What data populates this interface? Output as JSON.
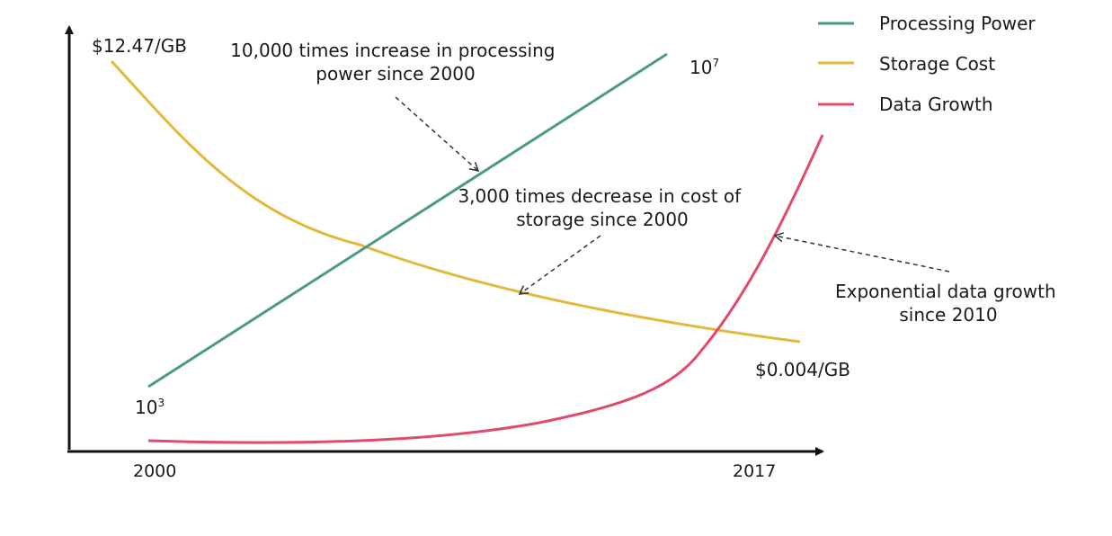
{
  "chart_data": {
    "type": "line",
    "title": "",
    "xlabel": "",
    "ylabel": "",
    "x_ticks": [
      "2000",
      "2017"
    ],
    "series": [
      {
        "name": "Processing Power",
        "color": "#4a9a8a",
        "start_label": "10",
        "start_exp": "3",
        "end_label": "10",
        "end_exp": "7"
      },
      {
        "name": "Storage Cost",
        "color": "#e2b93b",
        "start_label": "$12.47/GB",
        "end_label": "$0.004/GB"
      },
      {
        "name": "Data Growth",
        "color": "#e04a6c"
      }
    ],
    "annotations": [
      {
        "id": "processing",
        "lines": [
          "10,000 times increase in processing",
          "power since 2000"
        ]
      },
      {
        "id": "storage",
        "lines": [
          "3,000 times decrease in cost of",
          "storage since 2000"
        ]
      },
      {
        "id": "growth",
        "lines": [
          "Exponential data growth",
          "since 2010"
        ]
      }
    ],
    "legend_position": "top-right",
    "grid": false
  }
}
